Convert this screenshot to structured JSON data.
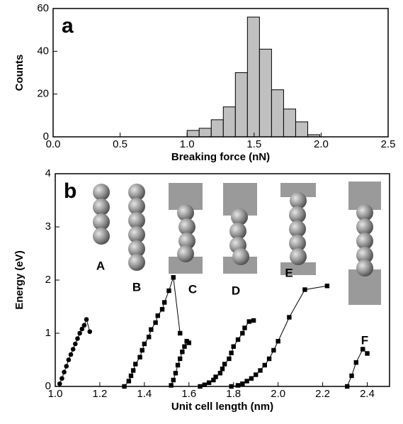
{
  "chart_data": [
    {
      "type": "histogram",
      "panel": "a",
      "xlabel": "Breaking force (nN)",
      "ylabel": "Counts",
      "bins": [
        1.0,
        1.09,
        1.18,
        1.27,
        1.36,
        1.45,
        1.54,
        1.63,
        1.72,
        1.81,
        1.9,
        1.99
      ],
      "values": [
        3,
        4,
        8,
        14,
        30,
        56,
        41,
        22,
        13,
        7,
        1
      ],
      "color": "#c0c0c0",
      "xlim": [
        0,
        2.5
      ],
      "ylim": [
        0,
        60
      ],
      "xticks": [
        {
          "value": 0,
          "label": "0.0"
        },
        0.5,
        {
          "value": 1,
          "label": "1.0"
        },
        1.5,
        {
          "value": 2,
          "label": "2.0"
        },
        2.5
      ],
      "yticks": [
        0,
        20,
        40,
        60
      ]
    },
    {
      "type": "line",
      "panel": "b",
      "xlabel": "Unit cell length (nm)",
      "ylabel": "Energy (eV)",
      "xlim": [
        1.0,
        2.5
      ],
      "ylim": [
        0,
        4
      ],
      "xticks": [
        {
          "value": 1,
          "label": "1.0"
        },
        1.2,
        1.4,
        1.6,
        1.8,
        {
          "value": 2,
          "label": "2.0"
        },
        2.2,
        2.4
      ],
      "yticks": [
        0,
        1,
        2,
        3,
        4
      ],
      "series": [
        {
          "name": "A",
          "color": "#000000",
          "marker": "circle",
          "x": [
            1.02,
            1.03,
            1.04,
            1.05,
            1.06,
            1.07,
            1.08,
            1.09,
            1.1,
            1.11,
            1.12,
            1.13,
            1.14,
            1.155
          ],
          "values": [
            0.05,
            0.15,
            0.27,
            0.38,
            0.5,
            0.6,
            0.7,
            0.8,
            0.9,
            1.0,
            1.08,
            1.15,
            1.26,
            1.03
          ]
        },
        {
          "name": "B",
          "color": "#000000",
          "marker": "square",
          "x": [
            1.31,
            1.33,
            1.34,
            1.35,
            1.36,
            1.38,
            1.39,
            1.4,
            1.42,
            1.43,
            1.45,
            1.46,
            1.48,
            1.49,
            1.51,
            1.53,
            1.56
          ],
          "values": [
            0.0,
            0.1,
            0.2,
            0.3,
            0.42,
            0.55,
            0.68,
            0.8,
            0.93,
            1.07,
            1.2,
            1.33,
            1.45,
            1.58,
            1.8,
            2.05,
            1.0
          ]
        },
        {
          "name": "C",
          "color": "#000000",
          "marker": "square",
          "x": [
            1.52,
            1.53,
            1.54,
            1.55,
            1.56,
            1.57,
            1.58,
            1.59,
            1.6
          ],
          "values": [
            0.02,
            0.12,
            0.25,
            0.4,
            0.52,
            0.65,
            0.75,
            0.85,
            0.82
          ]
        },
        {
          "name": "D",
          "color": "#000000",
          "marker": "square",
          "x": [
            1.65,
            1.67,
            1.69,
            1.71,
            1.72,
            1.74,
            1.75,
            1.76,
            1.78,
            1.79,
            1.8,
            1.82,
            1.84,
            1.85,
            1.87,
            1.89
          ],
          "values": [
            0.0,
            0.03,
            0.07,
            0.12,
            0.18,
            0.25,
            0.33,
            0.42,
            0.52,
            0.63,
            0.75,
            0.88,
            1.0,
            1.1,
            1.22,
            1.24
          ]
        },
        {
          "name": "E",
          "color": "#000000",
          "marker": "square",
          "x": [
            1.79,
            1.82,
            1.84,
            1.86,
            1.88,
            1.9,
            1.92,
            1.94,
            1.96,
            1.98,
            2.0,
            2.05,
            2.12,
            2.22
          ],
          "values": [
            0.0,
            0.02,
            0.05,
            0.1,
            0.15,
            0.22,
            0.3,
            0.4,
            0.52,
            0.68,
            0.85,
            1.3,
            1.82,
            1.89
          ]
        },
        {
          "name": "F",
          "color": "#000000",
          "marker": "square",
          "x": [
            2.31,
            2.33,
            2.35,
            2.38,
            2.4
          ],
          "values": [
            0.0,
            0.2,
            0.45,
            0.7,
            0.62
          ]
        }
      ]
    }
  ]
}
